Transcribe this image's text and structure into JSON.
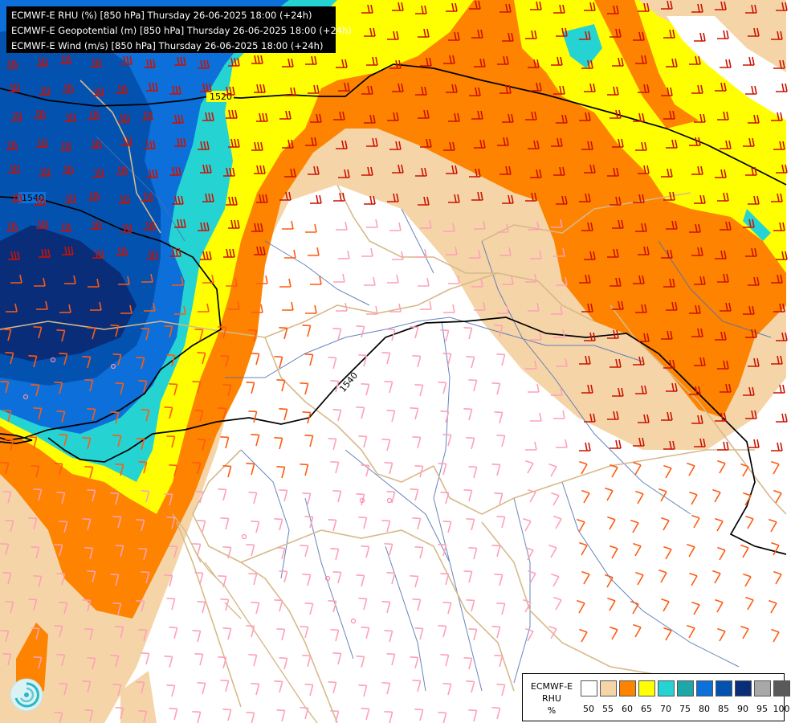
{
  "titles": [
    "ECMWF-E RHU (%) [850 hPa] Thursday 26-06-2025 18:00 (+24h)",
    "ECMWF-E Geopotential (m) [850 hPa] Thursday 26-06-2025 18:00 (+24h)",
    "ECMWF-E Wind (m/s) [850 hPa] Thursday 26-06-2025 18:00 (+24h)"
  ],
  "contours": {
    "label_1520": "1520",
    "label_1540_west": "1540",
    "label_1540_center": "1540"
  },
  "legend": {
    "title_line1": "ECMWF-E",
    "title_line2": "RHU",
    "title_line3": "%",
    "ticks": [
      "50",
      "55",
      "60",
      "65",
      "70",
      "75",
      "80",
      "85",
      "90",
      "95",
      "100"
    ],
    "colors": [
      "#ffffff",
      "#f5d5a8",
      "#fd8301",
      "#ffff02",
      "#26d3d3",
      "#1ea7a8",
      "#0d6fd9",
      "#0452b0",
      "#0a2d7a",
      "#a8a8a8",
      "#5a5a5a"
    ]
  },
  "map_colors": {
    "rhu_55": "#f5d5a8",
    "rhu_60": "#fd8301",
    "rhu_65": "#ffff02",
    "rhu_70": "#26d3d3",
    "rhu_80": "#0d6fd9",
    "rhu_85": "#0452b0",
    "rhu_90": "#0a2d7a",
    "wind_strong": "#cc1100",
    "wind_medium": "#ff5a10",
    "wind_light": "#ffa0b8"
  },
  "icons": {
    "logo": "swirl-logo-icon"
  }
}
